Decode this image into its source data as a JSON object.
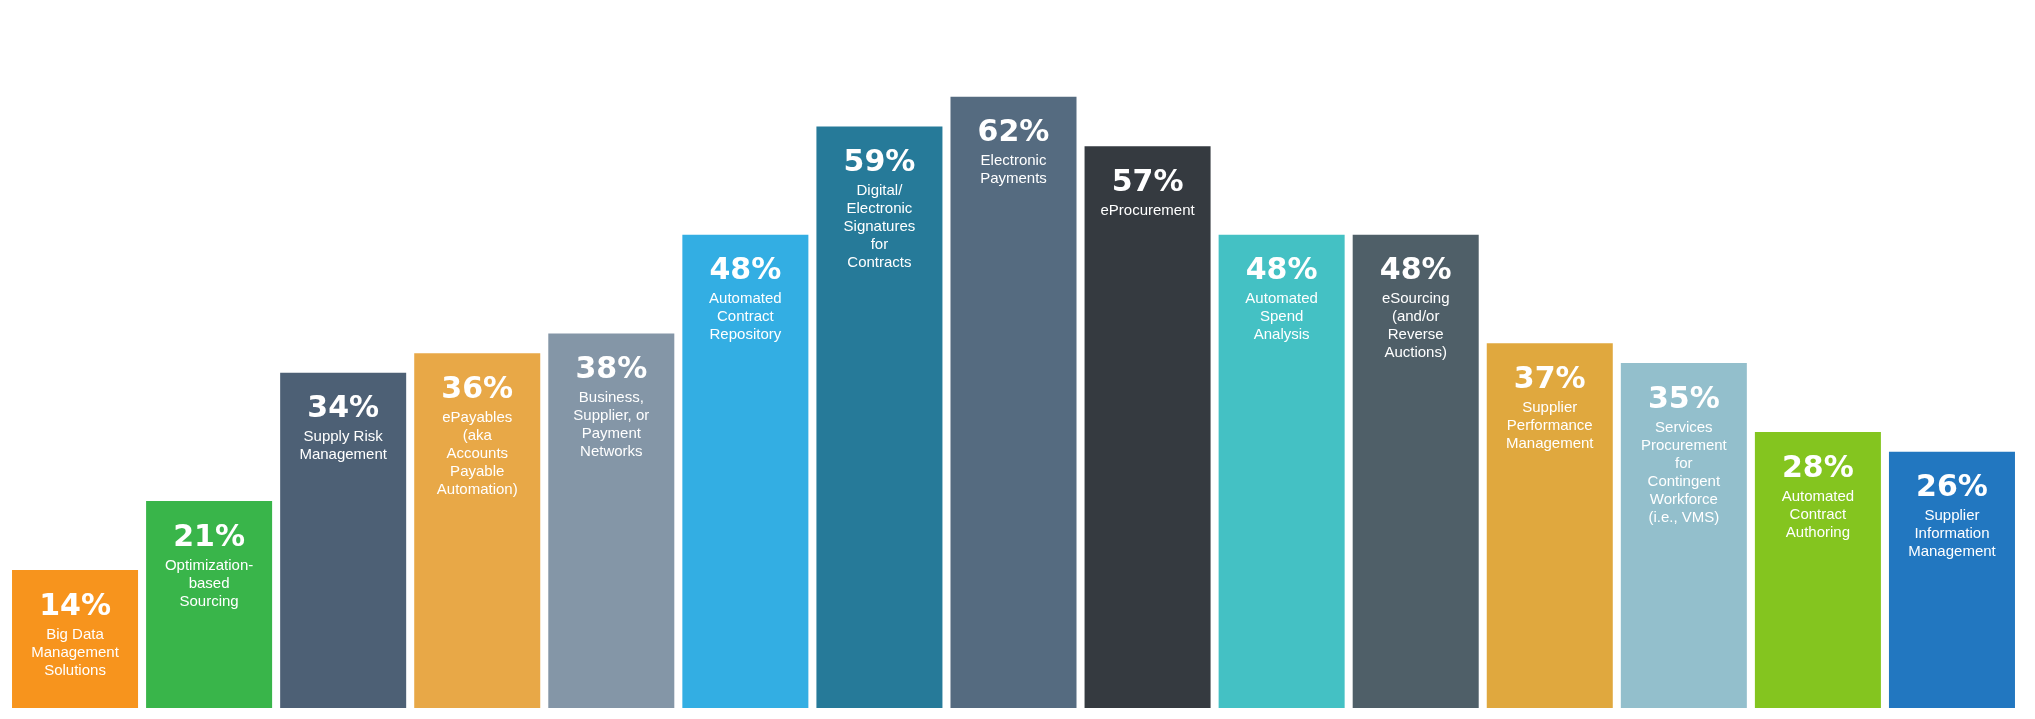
{
  "chart_data": {
    "type": "bar",
    "categories": [
      "Big Data Management Solutions",
      "Optimization-based Sourcing",
      "Supply Risk Management",
      "ePayables (aka Accounts Payable Automation)",
      "Business, Supplier, or Payment Networks",
      "Automated Contract Repository",
      "Digital/ Electronic Signatures for Contracts",
      "Electronic Payments",
      "eProcurement",
      "Automated Spend Analysis",
      "eSourcing (and/or Reverse Auctions)",
      "Supplier Performance Management",
      "Services Procurement for Contingent Workforce (i.e., VMS)",
      "Automated Contract Authoring",
      "Supplier Information Management"
    ],
    "values": [
      14,
      21,
      34,
      36,
      38,
      48,
      59,
      62,
      57,
      48,
      48,
      37,
      35,
      28,
      26
    ],
    "value_labels": [
      "14%",
      "21%",
      "34%",
      "36%",
      "38%",
      "48%",
      "59%",
      "62%",
      "57%",
      "48%",
      "48%",
      "37%",
      "35%",
      "28%",
      "26%"
    ],
    "colors": [
      "#f7941d",
      "#39b54a",
      "#4d6075",
      "#e8a847",
      "#8496a7",
      "#33aee3",
      "#267a99",
      "#556b80",
      "#353a40",
      "#44c1c4",
      "#4f5f68",
      "#e0a83e",
      "#93bfcc",
      "#84c51f",
      "#2277c0"
    ],
    "grid": false
  }
}
